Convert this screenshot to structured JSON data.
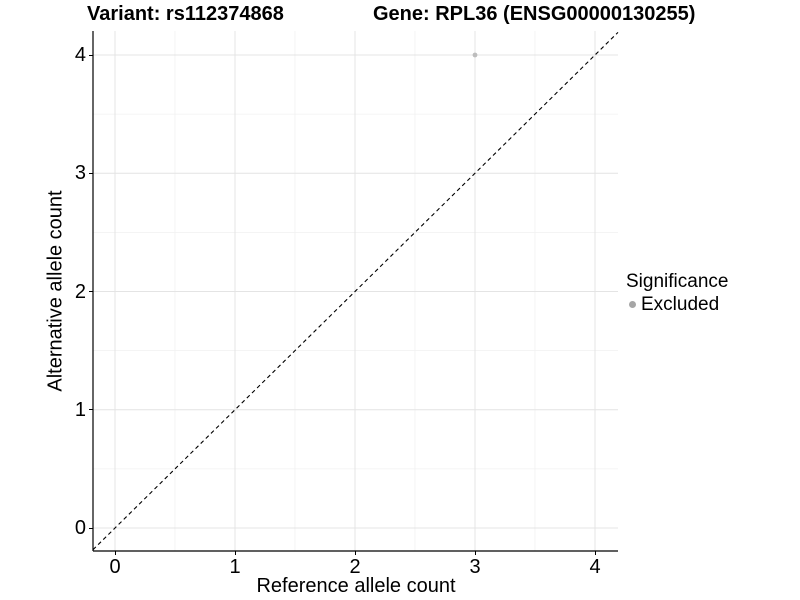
{
  "figure": {
    "title_variant": "Variant: rs112374868",
    "title_gene": "Gene: RPL36 (ENSG00000130255)"
  },
  "chart_data": {
    "type": "scatter",
    "title": "Variant: rs112374868   Gene: RPL36 (ENSG00000130255)",
    "xlabel": "Reference allele count",
    "ylabel": "Alternative allele count",
    "xlim": [
      -0.18,
      4.19
    ],
    "ylim": [
      -0.19,
      4.2
    ],
    "x_ticks": [
      0,
      1,
      2,
      3,
      4
    ],
    "y_ticks": [
      0,
      1,
      2,
      3,
      4
    ],
    "grid": {
      "major": true,
      "minor": true,
      "minor_step": 0.5
    },
    "series": [
      {
        "name": "Excluded",
        "marker": "circle",
        "color": "#bdbdbd",
        "points": [
          [
            3,
            4
          ]
        ]
      }
    ],
    "reference_line": {
      "type": "identity",
      "equation": "y = x",
      "style": "dashed",
      "color": "#000000"
    },
    "legend": {
      "position": "right",
      "title": "Significance",
      "items": [
        {
          "label": "Excluded",
          "marker": "circle",
          "color": "#a6a6a6"
        }
      ]
    },
    "colors": {
      "background": "#ffffff",
      "grid_major": "#e4e4e4",
      "grid_minor": "#f1f1f1",
      "axis": "#000000",
      "point": "#bdbdbd"
    }
  }
}
